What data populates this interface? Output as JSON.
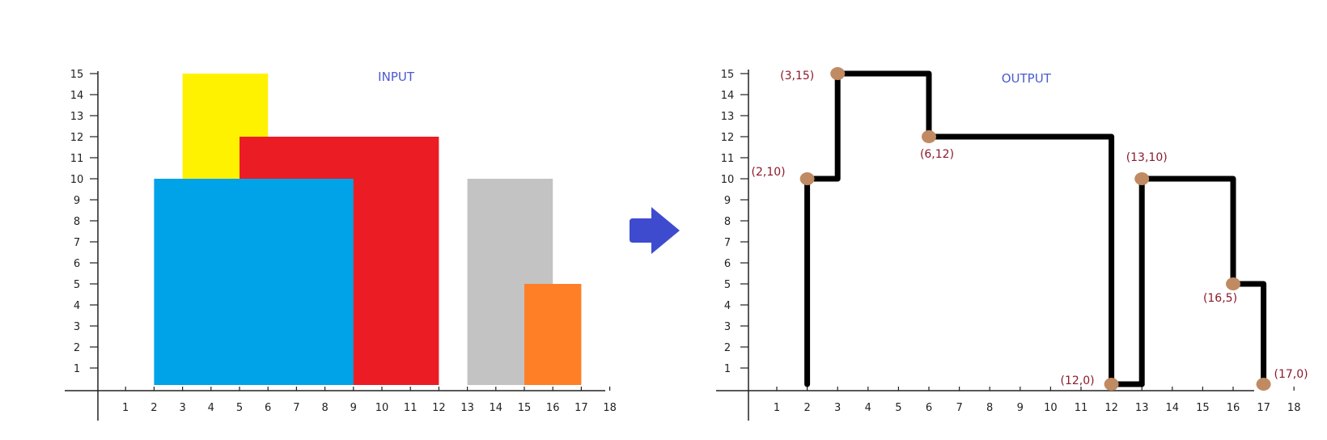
{
  "colors": {
    "axis": "#222222",
    "title": "#4a5ad0",
    "arrow": "#3f4bcf",
    "outline": "#000000",
    "point": "#c08a62",
    "point_label": "#8b1a2b"
  },
  "input_panel": {
    "title": "INPUT",
    "x_ticks": [
      "1",
      "2",
      "3",
      "4",
      "5",
      "6",
      "7",
      "8",
      "9",
      "10",
      "11",
      "12",
      "13",
      "14",
      "15",
      "16",
      "17",
      "18"
    ],
    "y_ticks": [
      "1",
      "2",
      "3",
      "4",
      "5",
      "6",
      "7",
      "8",
      "9",
      "10",
      "11",
      "12",
      "13",
      "14",
      "15"
    ],
    "buildings": [
      {
        "left": 3,
        "right": 6,
        "height": 15,
        "color": "#fff200"
      },
      {
        "left": 5,
        "right": 12,
        "height": 12,
        "color": "#ec1c24"
      },
      {
        "left": 2,
        "right": 9,
        "height": 10,
        "color": "#00a2e8"
      },
      {
        "left": 13,
        "right": 16,
        "height": 10,
        "color": "#c3c3c3"
      },
      {
        "left": 15,
        "right": 17,
        "height": 5,
        "color": "#ff7f27"
      }
    ]
  },
  "output_panel": {
    "title": "OUTPUT",
    "x_ticks": [
      "1",
      "2",
      "3",
      "4",
      "5",
      "6",
      "7",
      "8",
      "9",
      "10",
      "11",
      "12",
      "13",
      "14",
      "15",
      "16",
      "17",
      "18"
    ],
    "y_ticks": [
      "1",
      "2",
      "3",
      "4",
      "5",
      "6",
      "7",
      "8",
      "9",
      "10",
      "11",
      "12",
      "13",
      "14",
      "15"
    ],
    "outline_1": [
      [
        2,
        0
      ],
      [
        2,
        10
      ],
      [
        3,
        10
      ],
      [
        3,
        15
      ],
      [
        6,
        15
      ],
      [
        6,
        12
      ],
      [
        12,
        12
      ],
      [
        12,
        0
      ],
      [
        13,
        0
      ]
    ],
    "outline_2": [
      [
        13,
        0
      ],
      [
        13,
        10
      ],
      [
        16,
        10
      ],
      [
        16,
        5
      ],
      [
        17,
        5
      ],
      [
        17,
        0
      ]
    ],
    "key_points": [
      {
        "x": 3,
        "y": 15,
        "label": "(3,15)"
      },
      {
        "x": 2,
        "y": 10,
        "label": "(2,10)"
      },
      {
        "x": 6,
        "y": 12,
        "label": "(6,12)"
      },
      {
        "x": 13,
        "y": 10,
        "label": "(13,10)"
      },
      {
        "x": 16,
        "y": 5,
        "label": "(16,5)"
      },
      {
        "x": 12,
        "y": 0,
        "label": "(12,0)"
      },
      {
        "x": 17,
        "y": 0,
        "label": "(17,0)"
      }
    ]
  },
  "arrow": {
    "direction": "right-arrow-icon"
  }
}
